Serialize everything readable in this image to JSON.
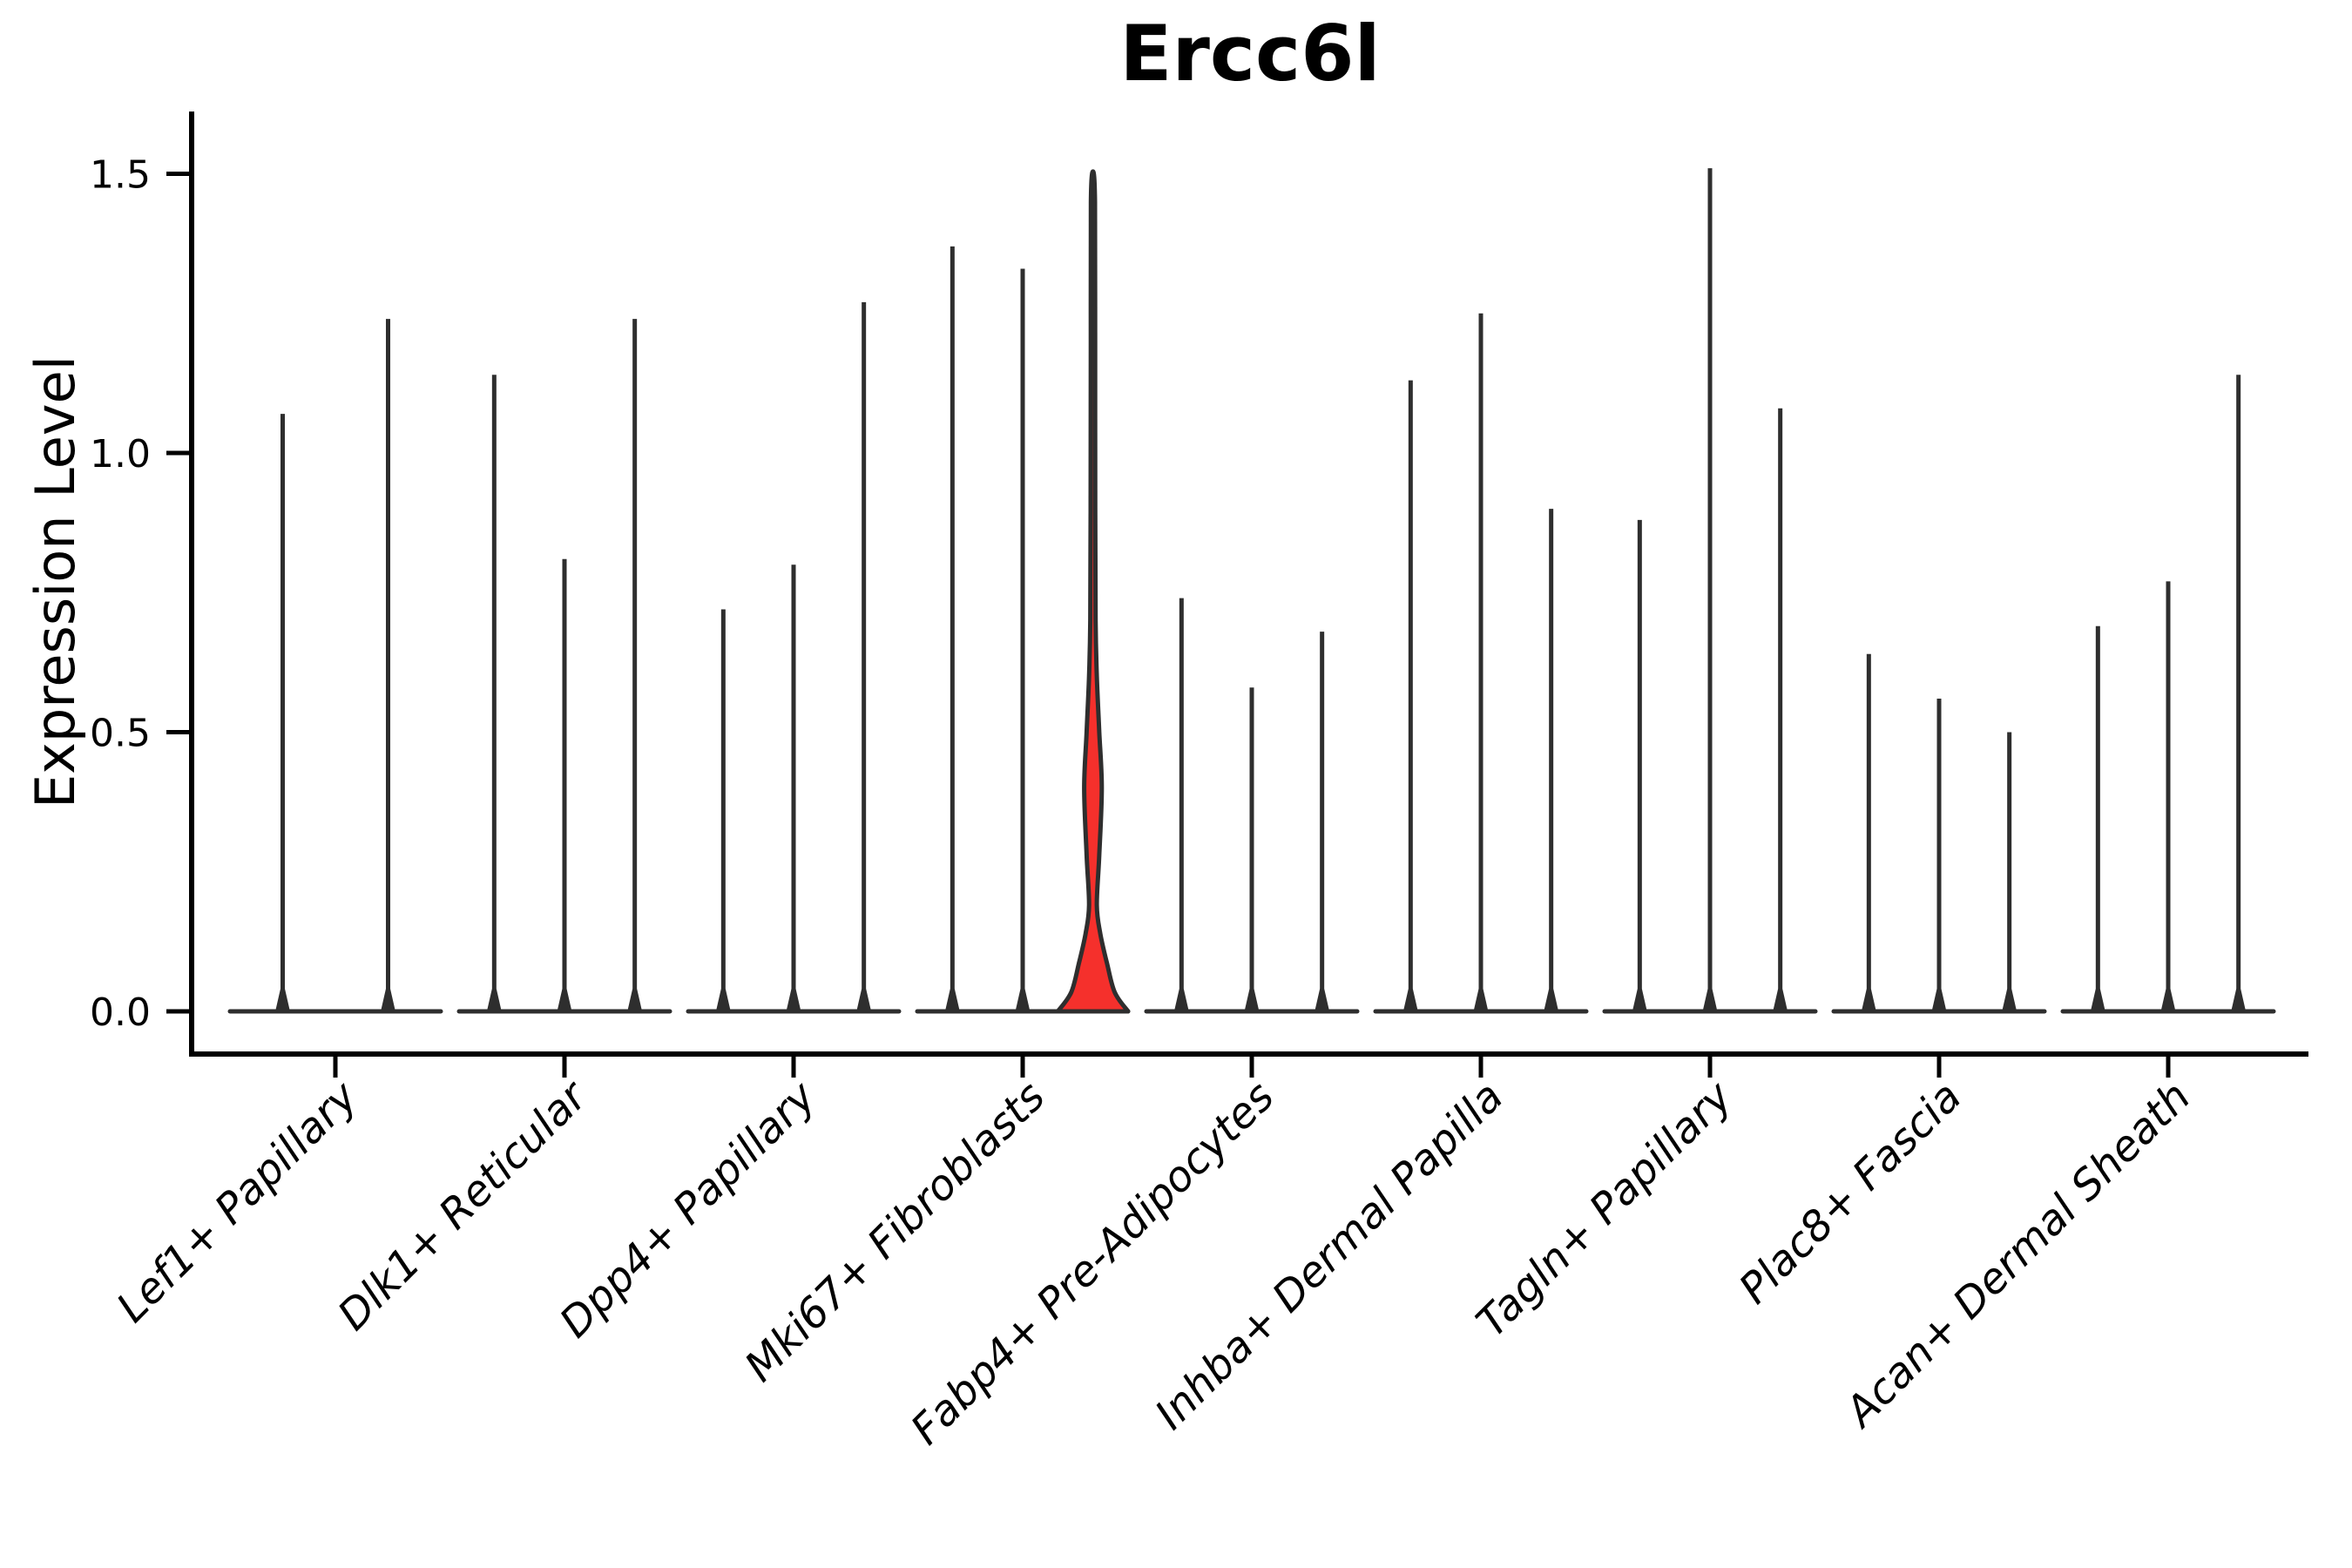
{
  "chart_data": {
    "type": "violin",
    "title": "Ercc6l",
    "ylabel": "Expression Level",
    "xlabel": "",
    "yticks": [
      0.0,
      0.5,
      1.0,
      1.5
    ],
    "ytick_labels": [
      "0.0",
      "0.5",
      "1.0",
      "1.5"
    ],
    "ylim": [
      -0.075,
      1.61
    ],
    "grid": false,
    "legend": "none",
    "x_tick_label_style": "italic, rotated 45 degrees",
    "categories": [
      "Lef1+ Papillary",
      "Dlk1+ Reticular",
      "Dpp4+ Papillary",
      "Mki67+ Fibroblasts",
      "Fabp4+ Pre-Adipocytes",
      "Inhba+ Dermal Papilla",
      "Tagln+ Papillary",
      "Plac8+ Fascia",
      "Acan+ Dermal Sheath"
    ],
    "groups": [
      {
        "label": "Lef1+ Papillary",
        "violin_max_values": [
          1.07,
          1.24
        ]
      },
      {
        "label": "Dlk1+ Reticular",
        "violin_max_values": [
          1.14,
          0.81,
          1.24
        ]
      },
      {
        "label": "Dpp4+ Papillary",
        "violin_max_values": [
          0.72,
          0.8,
          1.27
        ]
      },
      {
        "label": "Mki67+ Fibroblasts",
        "violin_max_values": [
          1.37,
          1.33,
          1.5
        ]
      },
      {
        "label": "Fabp4+ Pre-Adipocytes",
        "violin_max_values": [
          0.74,
          0.58,
          0.68
        ]
      },
      {
        "label": "Inhba+ Dermal Papilla",
        "violin_max_values": [
          1.13,
          1.25,
          0.9
        ]
      },
      {
        "label": "Tagln+ Papillary",
        "violin_max_values": [
          0.88,
          1.51,
          1.08
        ]
      },
      {
        "label": "Plac8+ Fascia",
        "violin_max_values": [
          0.64,
          0.56,
          0.5
        ]
      },
      {
        "label": "Acan+ Dermal Sheath",
        "violin_max_values": [
          0.69,
          0.77,
          1.14
        ]
      }
    ],
    "highlighted_violin": {
      "group": "Mki67+ Fibroblasts",
      "violin_index": 2,
      "max_value": 1.5,
      "profile_value_halfwidth": [
        [
          0.0,
          1.0
        ],
        [
          0.034,
          0.62
        ],
        [
          0.086,
          0.4
        ],
        [
          0.139,
          0.21
        ],
        [
          0.19,
          0.11
        ],
        [
          0.28,
          0.18
        ],
        [
          0.4,
          0.25
        ],
        [
          0.5,
          0.18
        ],
        [
          0.6,
          0.11
        ],
        [
          0.7,
          0.075
        ],
        [
          0.9,
          0.065
        ],
        [
          1.2,
          0.062
        ],
        [
          1.45,
          0.058
        ],
        [
          1.504,
          0.0
        ]
      ]
    },
    "colors": {
      "highlight_fill": "#f5302c",
      "violin_edge": "#2e2e2e",
      "axis": "#000000",
      "background": "#ffffff"
    }
  }
}
